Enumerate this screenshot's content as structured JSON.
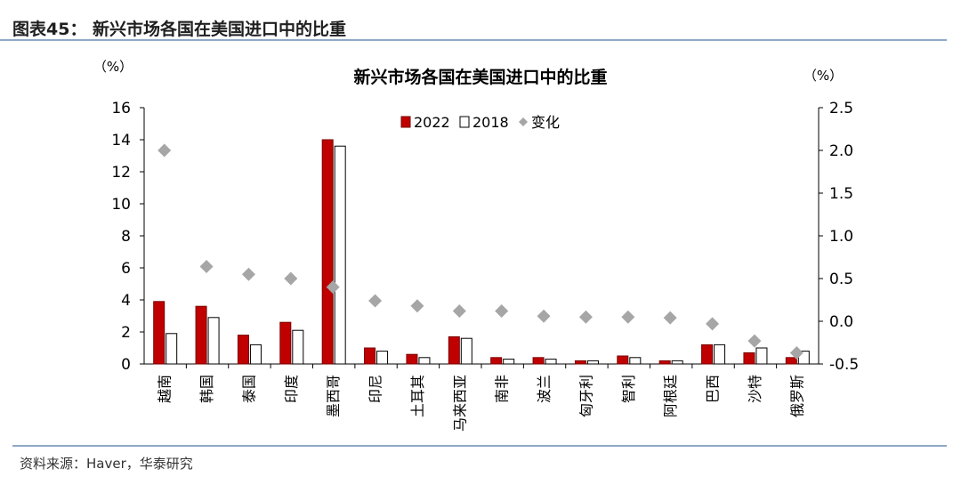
{
  "header": {
    "title": "图表45：  新兴市场各国在美国进口中的比重"
  },
  "source": "资料来源：Haver，华泰研究",
  "chart_data": {
    "type": "bar",
    "title": "新兴市场各国在美国进口中的比重",
    "ylabel": "（%）",
    "y2label": "（%）",
    "ylim": [
      0,
      16
    ],
    "yticks": [
      0,
      2,
      4,
      6,
      8,
      10,
      12,
      14,
      16
    ],
    "y2lim": [
      -0.5,
      2.5
    ],
    "y2ticks": [
      -0.5,
      0.0,
      0.5,
      1.0,
      1.5,
      2.0,
      2.5
    ],
    "legend_position": "top",
    "categories": [
      "越南",
      "韩国",
      "泰国",
      "印度",
      "墨西哥",
      "印尼",
      "土耳其",
      "马来西亚",
      "南非",
      "波兰",
      "匈牙利",
      "智利",
      "阿根廷",
      "巴西",
      "沙特",
      "俄罗斯"
    ],
    "series": [
      {
        "name": "2022",
        "color": "#c00000",
        "axis": "left",
        "type": "bar",
        "values": [
          3.9,
          3.6,
          1.8,
          2.6,
          14.0,
          1.0,
          0.6,
          1.7,
          0.4,
          0.4,
          0.2,
          0.5,
          0.2,
          1.2,
          0.7,
          0.4
        ]
      },
      {
        "name": "2018",
        "color": "#ffffff",
        "axis": "left",
        "type": "bar",
        "values": [
          1.9,
          2.9,
          1.2,
          2.1,
          13.6,
          0.8,
          0.4,
          1.6,
          0.3,
          0.3,
          0.2,
          0.4,
          0.2,
          1.2,
          1.0,
          0.8
        ]
      },
      {
        "name": "变化",
        "color": "#a6a6a6",
        "axis": "right",
        "type": "scatter",
        "values": [
          2.0,
          0.64,
          0.55,
          0.5,
          0.4,
          0.24,
          0.18,
          0.12,
          0.12,
          0.06,
          0.05,
          0.05,
          0.04,
          -0.03,
          -0.23,
          -0.37
        ]
      }
    ]
  }
}
